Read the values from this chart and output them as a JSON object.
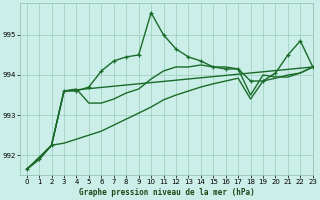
{
  "title": "Graphe pression niveau de la mer (hPa)",
  "bg_color": "#cceee8",
  "grid_color": "#99ccbb",
  "line_color": "#1a6b2a",
  "ylim": [
    991.5,
    995.8
  ],
  "xlim": [
    -0.5,
    23
  ],
  "yticks": [
    992,
    993,
    994,
    995
  ],
  "xticks": [
    0,
    1,
    2,
    3,
    4,
    5,
    6,
    7,
    8,
    9,
    10,
    11,
    12,
    13,
    14,
    15,
    16,
    17,
    18,
    19,
    20,
    21,
    22,
    23
  ],
  "series": [
    {
      "x": [
        0,
        1,
        2,
        3,
        4,
        5,
        6,
        7,
        8,
        9,
        10,
        11,
        12,
        13,
        14,
        15,
        16,
        17,
        18,
        19,
        20,
        21,
        22,
        23
      ],
      "y": [
        991.65,
        991.9,
        992.25,
        993.6,
        993.6,
        993.7,
        994.1,
        994.35,
        994.45,
        994.5,
        995.55,
        995.0,
        994.65,
        994.45,
        994.35,
        994.2,
        994.15,
        994.15,
        993.85,
        993.85,
        994.05,
        994.5,
        994.85,
        994.2
      ],
      "marker": true,
      "lw": 1.0
    },
    {
      "x": [
        0,
        1,
        2,
        3,
        4,
        5,
        6,
        7,
        8,
        9,
        10,
        11,
        12,
        13,
        14,
        15,
        16,
        17,
        18,
        19,
        20,
        21,
        22,
        23
      ],
      "y": [
        991.65,
        991.9,
        992.25,
        993.6,
        993.65,
        993.3,
        993.3,
        993.4,
        993.55,
        993.65,
        993.9,
        994.1,
        994.2,
        994.2,
        994.25,
        994.2,
        994.2,
        994.15,
        993.5,
        994.0,
        993.95,
        993.95,
        994.05,
        994.2
      ],
      "marker": false,
      "lw": 1.0
    },
    {
      "x": [
        0,
        1,
        2,
        3,
        4,
        5,
        6,
        7,
        8,
        9,
        10,
        11,
        12,
        13,
        14,
        15,
        16,
        17,
        18,
        19,
        20,
        21,
        22,
        23
      ],
      "y": [
        991.65,
        991.9,
        992.25,
        992.3,
        992.4,
        992.5,
        992.6,
        992.75,
        992.9,
        993.05,
        993.2,
        993.38,
        993.5,
        993.6,
        993.7,
        993.78,
        993.85,
        993.92,
        993.4,
        993.85,
        993.92,
        994.0,
        994.05,
        994.2
      ],
      "marker": false,
      "lw": 1.0
    },
    {
      "x": [
        0,
        2,
        3,
        23
      ],
      "y": [
        991.65,
        992.25,
        993.6,
        994.2
      ],
      "marker": false,
      "lw": 1.0
    }
  ]
}
